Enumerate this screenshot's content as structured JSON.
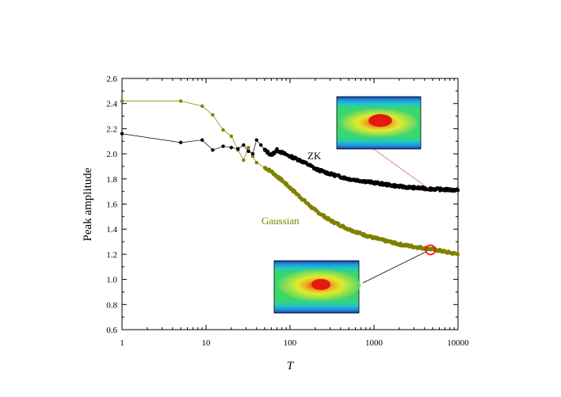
{
  "chart_data": {
    "type": "scatter",
    "xlabel": "T",
    "ylabel": "Peak amplitude",
    "xscale": "log",
    "xlim": [
      1,
      10000
    ],
    "ylim": [
      0.6,
      2.6
    ],
    "x_ticks": [
      1,
      10,
      100,
      1000,
      10000
    ],
    "x_tick_labels": [
      "1",
      "10",
      "100",
      "1000",
      "10000"
    ],
    "y_ticks": [
      0.6,
      0.8,
      1.0,
      1.2,
      1.4,
      1.6,
      1.8,
      2.0,
      2.2,
      2.4,
      2.6
    ],
    "y_tick_labels": [
      "0.6",
      "0.8",
      "1.0",
      "1.2",
      "1.4",
      "1.6",
      "1.8",
      "2.0",
      "2.2",
      "2.4",
      "2.6"
    ],
    "grid": false,
    "series": [
      {
        "name": "ZK",
        "color": "#000000",
        "points": [
          [
            1,
            2.16
          ],
          [
            5,
            2.09
          ],
          [
            9,
            2.11
          ],
          [
            12,
            2.03
          ],
          [
            16,
            2.06
          ],
          [
            20,
            2.05
          ],
          [
            24,
            2.04
          ],
          [
            28,
            2.07
          ],
          [
            32,
            2.02
          ],
          [
            36,
            2.0
          ],
          [
            40,
            2.11
          ],
          [
            45,
            2.07
          ],
          [
            50,
            2.03
          ],
          [
            60,
            1.99
          ],
          [
            70,
            2.03
          ],
          [
            80,
            2.01
          ],
          [
            100,
            1.98
          ],
          [
            130,
            1.95
          ],
          [
            170,
            1.91
          ],
          [
            200,
            1.88
          ],
          [
            300,
            1.84
          ],
          [
            500,
            1.8
          ],
          [
            800,
            1.78
          ],
          [
            1000,
            1.77
          ],
          [
            2000,
            1.74
          ],
          [
            3000,
            1.73
          ],
          [
            5000,
            1.72
          ],
          [
            10000,
            1.71
          ]
        ]
      },
      {
        "name": "Gaussian",
        "color": "#808000",
        "points": [
          [
            1,
            2.42
          ],
          [
            5,
            2.42
          ],
          [
            9,
            2.38
          ],
          [
            12,
            2.31
          ],
          [
            16,
            2.19
          ],
          [
            20,
            2.14
          ],
          [
            24,
            2.03
          ],
          [
            28,
            1.95
          ],
          [
            32,
            2.05
          ],
          [
            36,
            1.98
          ],
          [
            40,
            1.93
          ],
          [
            50,
            1.89
          ],
          [
            60,
            1.86
          ],
          [
            70,
            1.82
          ],
          [
            80,
            1.79
          ],
          [
            100,
            1.73
          ],
          [
            130,
            1.66
          ],
          [
            170,
            1.59
          ],
          [
            200,
            1.55
          ],
          [
            300,
            1.47
          ],
          [
            500,
            1.4
          ],
          [
            800,
            1.35
          ],
          [
            1000,
            1.33
          ],
          [
            2000,
            1.28
          ],
          [
            3000,
            1.26
          ],
          [
            5000,
            1.24
          ],
          [
            10000,
            1.2
          ]
        ]
      }
    ],
    "annotations": [
      {
        "text": "ZK",
        "x": 200,
        "y": 1.88,
        "color": "#000000"
      },
      {
        "text": "Gaussian",
        "x": 60,
        "y": 1.43,
        "color": "#808000"
      }
    ],
    "marked_point": {
      "x": 4700,
      "y": 1.235,
      "color": "#ff0000"
    }
  }
}
